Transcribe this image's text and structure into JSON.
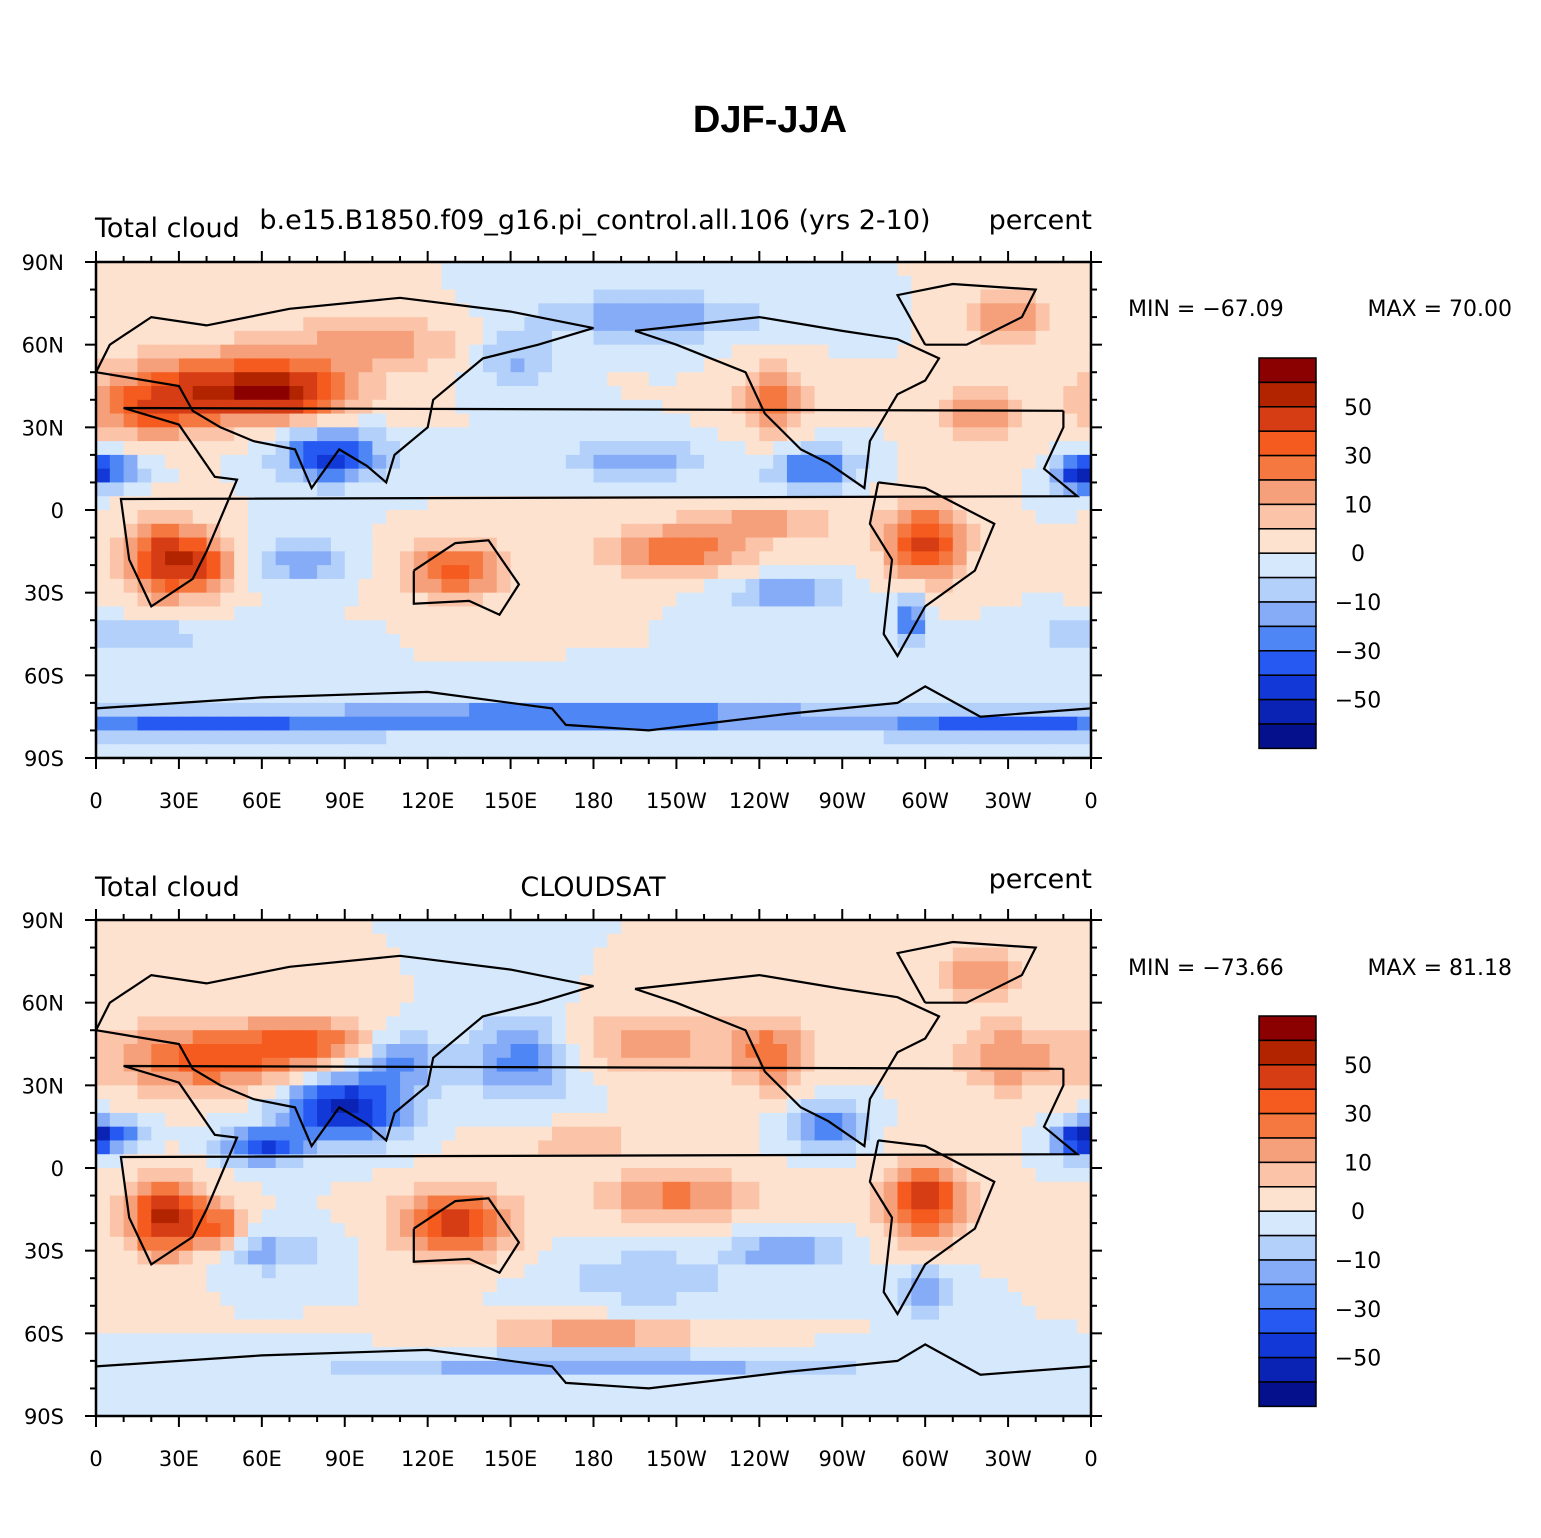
{
  "figure": {
    "title": "DJF-JJA"
  },
  "colorbar": {
    "colors": [
      "#8b0000",
      "#b22400",
      "#d63d14",
      "#f55a1f",
      "#f57840",
      "#f5a07a",
      "#fbc4a8",
      "#fde2d0",
      "#d6e8fb",
      "#b2d0fa",
      "#86acf7",
      "#4f86f5",
      "#2659f2",
      "#1239d8",
      "#0a23b4",
      "#04108c"
    ],
    "labels": [
      "50",
      "30",
      "10",
      "0",
      "−10",
      "−30",
      "−50"
    ]
  },
  "axes": {
    "lat_ticks": [
      "90N",
      "60N",
      "30N",
      "0",
      "30S",
      "60S",
      "90S"
    ],
    "lon_ticks": [
      "0",
      "30E",
      "60E",
      "90E",
      "120E",
      "150E",
      "180",
      "150W",
      "120W",
      "90W",
      "60W",
      "30W",
      "0"
    ]
  },
  "panels": [
    {
      "left_label": "Total cloud",
      "center_label": "b.e15.B1850.f09_g16.pi_control.all.106 (yrs 2-10)",
      "right_label": "percent",
      "min_text": "MIN = −67.09",
      "max_text": "MAX =   70.00"
    },
    {
      "left_label": "Total cloud",
      "center_label": "CLOUDSAT",
      "right_label": "percent",
      "min_text": "MIN = −73.66",
      "max_text": "MAX =   81.18"
    }
  ]
}
